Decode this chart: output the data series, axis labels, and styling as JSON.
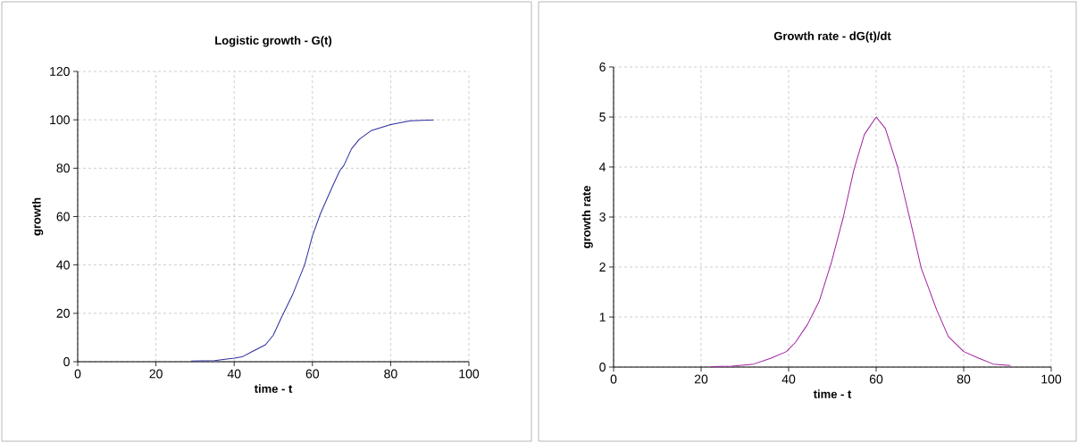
{
  "chart_data": [
    {
      "type": "line",
      "title": "Logistic growth - G(t)",
      "xlabel": "time - t",
      "ylabel": "growth",
      "x": [
        29,
        35,
        40,
        42,
        45,
        48,
        50,
        52,
        55,
        58,
        60,
        62,
        65,
        67,
        68,
        70,
        72,
        75,
        80,
        85,
        91
      ],
      "series": [
        {
          "color": "#2b2ba0",
          "values": [
            0.3,
            0.5,
            1.5,
            2,
            4.5,
            7,
            11,
            18,
            28,
            40,
            52,
            61,
            72,
            79,
            81,
            88,
            92,
            95.5,
            98,
            99.6,
            100
          ]
        }
      ],
      "xlim": [
        0,
        100
      ],
      "ylim": [
        0,
        120
      ],
      "xticks": [
        0,
        20,
        40,
        60,
        80,
        100
      ],
      "yticks": [
        0,
        20,
        40,
        60,
        80,
        100,
        120
      ],
      "grid": true
    },
    {
      "type": "line",
      "title": "Growth rate - dG(t)/dt",
      "xlabel": "time - t",
      "ylabel": "growth rate",
      "x": [
        22.2,
        27,
        32,
        36,
        39.5,
        41.6,
        44.3,
        47,
        49.8,
        52.5,
        54.9,
        57.3,
        60,
        62.1,
        64.9,
        67.6,
        70.3,
        73.8,
        76.5,
        80,
        83.4,
        86.8,
        90.7
      ],
      "series": [
        {
          "color": "#a020a0",
          "values": [
            0.01,
            0.02,
            0.06,
            0.18,
            0.31,
            0.5,
            0.85,
            1.32,
            2.1,
            3.0,
            3.94,
            4.65,
            5,
            4.77,
            4.0,
            3.0,
            1.98,
            1.15,
            0.61,
            0.31,
            0.18,
            0.06,
            0.03
          ]
        }
      ],
      "xlim": [
        0,
        100
      ],
      "ylim": [
        0,
        6
      ],
      "xticks": [
        0,
        20,
        40,
        60,
        80,
        100
      ],
      "yticks": [
        0,
        1,
        2,
        3,
        4,
        5,
        6
      ],
      "grid": true
    }
  ]
}
